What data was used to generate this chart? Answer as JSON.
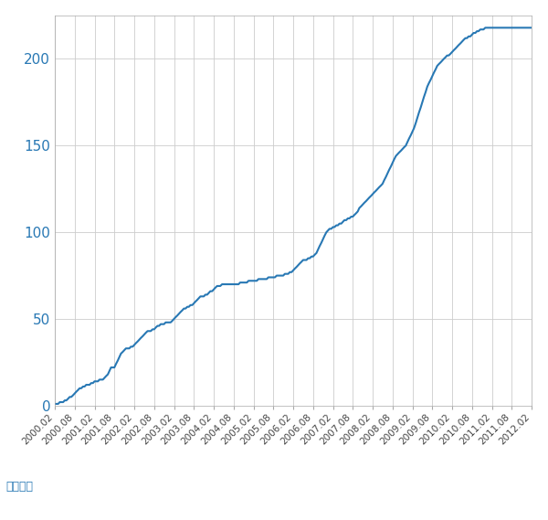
{
  "line_color": "#2878b4",
  "bg_color": "#ffffff",
  "grid_color": "#cccccc",
  "ylabel": "（件数）",
  "ylabel_color": "#2878b4",
  "ytick_color": "#2878b4",
  "xtick_color": "#444444",
  "ylim": [
    0,
    225
  ],
  "yticks": [
    0,
    50,
    100,
    150,
    200
  ],
  "xlabels": [
    "2000.02",
    "2000.08",
    "2001.02",
    "2001.08",
    "2002.02",
    "2002.08",
    "2003.02",
    "2003.08",
    "2004.02",
    "2004.08",
    "2005.02",
    "2005.08",
    "2006.02",
    "2006.08",
    "2007.02",
    "2007.08",
    "2008.02",
    "2008.08",
    "2009.02",
    "2009.08",
    "2010.02",
    "2010.08",
    "2011.02",
    "2011.08",
    "2012.02"
  ],
  "detailed_x": [
    0.0,
    0.08,
    0.17,
    0.25,
    0.33,
    0.42,
    0.5,
    0.58,
    0.67,
    0.75,
    0.83,
    0.92,
    1.0,
    1.08,
    1.17,
    1.25,
    1.33,
    1.42,
    1.5,
    1.58,
    1.67,
    1.75,
    1.83,
    1.92,
    2.0,
    2.08,
    2.17,
    2.25,
    2.33,
    2.42,
    2.5,
    2.58,
    2.67,
    2.75,
    2.83,
    2.92,
    3.0,
    3.08,
    3.17,
    3.25,
    3.33,
    3.42,
    3.5,
    3.58,
    3.67,
    3.75,
    3.83,
    3.92,
    4.0,
    4.08,
    4.17,
    4.25,
    4.33,
    4.42,
    4.5,
    4.58,
    4.67,
    4.75,
    4.83,
    4.92,
    5.0,
    5.08,
    5.17,
    5.25,
    5.33,
    5.42,
    5.5,
    5.58,
    5.67,
    5.75,
    5.83,
    5.92,
    6.0,
    6.08,
    6.17,
    6.25,
    6.33,
    6.42,
    6.5,
    6.58,
    6.67,
    6.75,
    6.83,
    6.92,
    7.0,
    7.08,
    7.17,
    7.25,
    7.33,
    7.42,
    7.5,
    7.58,
    7.67,
    7.75,
    7.83,
    7.92,
    8.0,
    8.08,
    8.17,
    8.25,
    8.33,
    8.42,
    8.5,
    8.58,
    8.67,
    8.75,
    8.83,
    8.92,
    9.0,
    9.08,
    9.17,
    9.25,
    9.33,
    9.42,
    9.5,
    9.58,
    9.67,
    9.75,
    9.83,
    9.92,
    10.0,
    10.08,
    10.17,
    10.25,
    10.33,
    10.42,
    10.5,
    10.58,
    10.67,
    10.75,
    10.83,
    10.92,
    11.0,
    11.08,
    11.17,
    11.25,
    11.33,
    11.42,
    11.5,
    11.58,
    11.67,
    11.75,
    11.83,
    11.92,
    12.0,
    12.08,
    12.17,
    12.25,
    12.33,
    12.42,
    12.5,
    12.58,
    12.67,
    12.75,
    12.83,
    12.92,
    13.0,
    13.08,
    13.17,
    13.25,
    13.33,
    13.42,
    13.5,
    13.58,
    13.67,
    13.75,
    13.83,
    13.92,
    14.0,
    14.08,
    14.17,
    14.25,
    14.33,
    14.42,
    14.5,
    14.58,
    14.67,
    14.75,
    14.83,
    14.92,
    15.0,
    15.08,
    15.17,
    15.25,
    15.33,
    15.42,
    15.5,
    15.58,
    15.67,
    15.75,
    15.83,
    15.92,
    16.0,
    16.08,
    16.17,
    16.25,
    16.33,
    16.42,
    16.5,
    16.58,
    16.67,
    16.75,
    16.83,
    16.92,
    17.0,
    17.08,
    17.17,
    17.25,
    17.33,
    17.42,
    17.5,
    17.58,
    17.67,
    17.75,
    17.83,
    17.92,
    18.0,
    18.08,
    18.17,
    18.25,
    18.33,
    18.42,
    18.5,
    18.58,
    18.67,
    18.75,
    18.83,
    18.92,
    19.0,
    19.08,
    19.17,
    19.25,
    19.33,
    19.42,
    19.5,
    19.58,
    19.67,
    19.75,
    19.83,
    19.92,
    20.0,
    20.08,
    20.17,
    20.25,
    20.33,
    20.42,
    20.5,
    20.58,
    20.67,
    20.75,
    20.83,
    20.92,
    21.0,
    21.08,
    21.17,
    21.25,
    21.33,
    21.42,
    21.5,
    21.58,
    21.67,
    21.75,
    21.83,
    21.92,
    22.0,
    22.08,
    22.17,
    22.25,
    22.33,
    22.42,
    22.5,
    22.58,
    22.67,
    22.75,
    22.83,
    22.92,
    23.0,
    23.08,
    23.17,
    23.25,
    23.33,
    23.42,
    23.5,
    23.58,
    23.67,
    23.75,
    23.83,
    23.92,
    24.0
  ],
  "detailed_y": [
    1,
    1,
    1,
    2,
    2,
    2,
    3,
    3,
    4,
    5,
    5,
    6,
    7,
    8,
    9,
    10,
    10,
    11,
    11,
    12,
    12,
    12,
    13,
    13,
    14,
    14,
    14,
    15,
    15,
    15,
    16,
    17,
    18,
    20,
    22,
    22,
    22,
    24,
    26,
    28,
    30,
    31,
    32,
    33,
    33,
    33,
    34,
    34,
    35,
    36,
    37,
    38,
    39,
    40,
    41,
    42,
    43,
    43,
    43,
    44,
    44,
    45,
    46,
    46,
    47,
    47,
    47,
    48,
    48,
    48,
    48,
    49,
    50,
    51,
    52,
    53,
    54,
    55,
    56,
    56,
    57,
    57,
    58,
    58,
    59,
    60,
    61,
    62,
    63,
    63,
    63,
    64,
    64,
    65,
    66,
    66,
    67,
    68,
    69,
    69,
    69,
    70,
    70,
    70,
    70,
    70,
    70,
    70,
    70,
    70,
    70,
    70,
    71,
    71,
    71,
    71,
    71,
    72,
    72,
    72,
    72,
    72,
    72,
    73,
    73,
    73,
    73,
    73,
    73,
    74,
    74,
    74,
    74,
    74,
    75,
    75,
    75,
    75,
    75,
    76,
    76,
    76,
    77,
    77,
    78,
    79,
    80,
    81,
    82,
    83,
    84,
    84,
    84,
    85,
    85,
    86,
    86,
    87,
    88,
    90,
    92,
    94,
    96,
    98,
    100,
    101,
    102,
    102,
    103,
    103,
    104,
    104,
    105,
    105,
    106,
    107,
    107,
    108,
    108,
    109,
    109,
    110,
    111,
    112,
    114,
    115,
    116,
    117,
    118,
    119,
    120,
    121,
    122,
    123,
    124,
    125,
    126,
    127,
    128,
    130,
    132,
    134,
    136,
    138,
    140,
    142,
    144,
    145,
    146,
    147,
    148,
    149,
    150,
    152,
    154,
    156,
    158,
    160,
    163,
    166,
    169,
    172,
    175,
    178,
    181,
    184,
    186,
    188,
    190,
    192,
    194,
    196,
    197,
    198,
    199,
    200,
    201,
    202,
    202,
    203,
    204,
    205,
    206,
    207,
    208,
    209,
    210,
    211,
    212,
    212,
    213,
    213,
    214,
    215,
    215,
    216,
    216,
    217,
    217,
    217,
    218,
    218,
    218,
    218,
    218,
    218,
    218,
    218,
    218,
    218,
    218,
    218,
    218,
    218,
    218,
    218,
    218,
    218,
    218,
    218,
    218,
    218,
    218,
    218,
    218,
    218,
    218,
    218,
    218
  ]
}
